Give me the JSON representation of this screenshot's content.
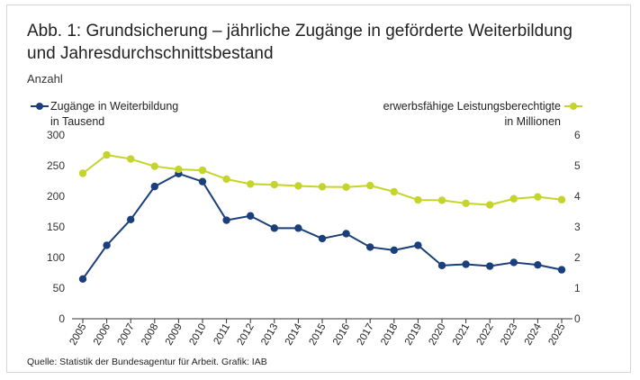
{
  "title_line1": "Abb. 1: Grundsicherung – jährliche Zugänge in geförderte Weiterbildung",
  "title_line2": "und Jahresdurchschnittsbestand",
  "unit_label": "Anzahl",
  "legend": {
    "left_line1": "Zugänge in Weiterbildung",
    "left_line2": "in Tausend",
    "right_line1": "erwerbsfähige Leistungsberechtigte",
    "right_line2": "in Millionen"
  },
  "source": "Quelle: Statistik der Bundesagentur für Arbeit. Grafik: IAB",
  "chart_data": {
    "type": "line",
    "x": [
      "2005",
      "2006",
      "2007",
      "2008",
      "2009",
      "2010",
      "2011",
      "2012",
      "2013",
      "2014",
      "2015",
      "2016",
      "2017",
      "2018",
      "2019",
      "2020",
      "2021",
      "2022",
      "2023",
      "2024",
      "2025"
    ],
    "y_left": {
      "ylim": [
        0,
        300
      ],
      "ticks": [
        0,
        50,
        100,
        150,
        200,
        250,
        300
      ]
    },
    "y_right": {
      "ylim": [
        0,
        6
      ],
      "ticks": [
        0,
        1,
        2,
        3,
        4,
        5,
        6
      ]
    },
    "grid": false,
    "legend_position": "top",
    "series": [
      {
        "name": "Zugänge in Weiterbildung in Tausend",
        "axis": "left",
        "color": "#1a3f7a",
        "values": [
          65,
          120,
          162,
          216,
          237,
          224,
          161,
          168,
          148,
          148,
          131,
          139,
          117,
          112,
          120,
          87,
          89,
          86,
          92,
          88,
          80
        ]
      },
      {
        "name": "erwerbsfähige Leistungsberechtigte in Millionen",
        "axis": "right",
        "color": "#c5d42b",
        "values": [
          4.75,
          5.35,
          5.22,
          4.98,
          4.88,
          4.85,
          4.56,
          4.4,
          4.38,
          4.34,
          4.31,
          4.3,
          4.35,
          4.15,
          3.88,
          3.87,
          3.77,
          3.72,
          3.92,
          3.98,
          3.89
        ]
      }
    ]
  }
}
